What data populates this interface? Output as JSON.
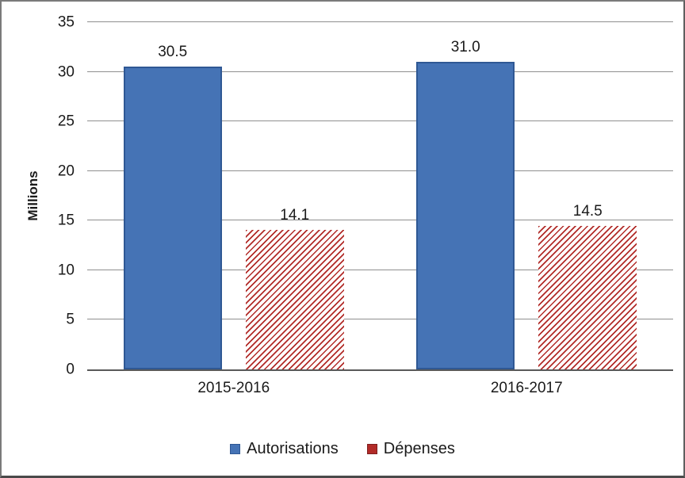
{
  "figure": {
    "background": "#ffffff",
    "border_color": "#7a7a7a"
  },
  "chart_data": {
    "type": "bar",
    "title": "",
    "categories": [
      "2015-2016",
      "2016-2017"
    ],
    "series": [
      {
        "name": "Autorisations",
        "values": [
          30.5,
          31.0
        ],
        "value_labels": [
          "30.5",
          "31.0"
        ],
        "color": "#4573B5",
        "border_color": "#2F5894",
        "pattern": "solid"
      },
      {
        "name": "Dépenses",
        "values": [
          14.1,
          14.5
        ],
        "value_labels": [
          "14.1",
          "14.5"
        ],
        "color": "#B22B28",
        "border_color": "#7E1F1E",
        "pattern": "diagonal-hatch"
      }
    ],
    "xlabel": "",
    "ylabel": "Millions",
    "ylim": [
      0,
      35
    ],
    "yticks": [
      35,
      30,
      25,
      20,
      15,
      10,
      5,
      0
    ],
    "grid": "horizontal",
    "gridline_color": "#8f8f8f",
    "axis_line_color": "#595959",
    "text_color": "#1a1a1a",
    "legend_position": "bottom"
  }
}
